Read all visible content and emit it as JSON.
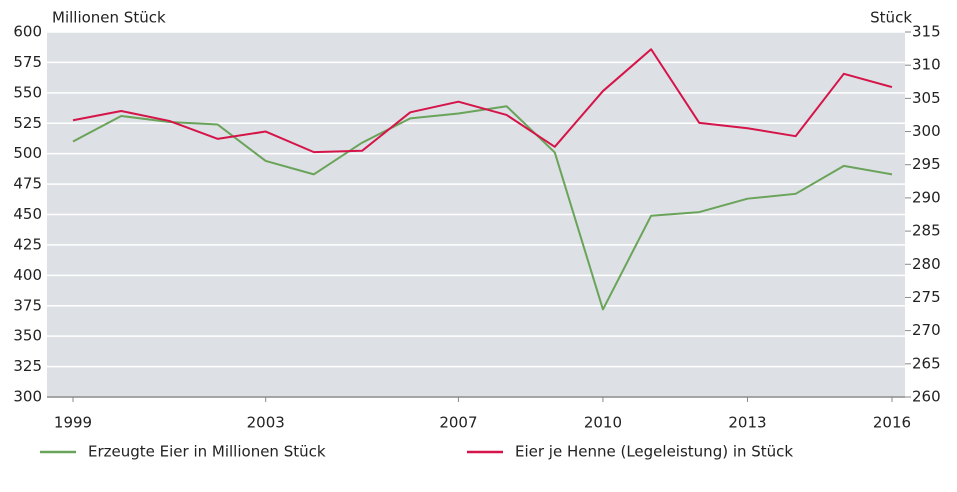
{
  "chart_data": {
    "type": "line",
    "y_label": "Millionen Stück",
    "y2_label": "Stück",
    "x": [
      1999,
      2000,
      2001,
      2002,
      2003,
      2004,
      2005,
      2006,
      2007,
      2008,
      2009,
      2010,
      2011,
      2012,
      2013,
      2014,
      2015,
      2016
    ],
    "xlim": [
      1998.46,
      2016.27
    ],
    "xticks": [
      1999,
      2003,
      2007,
      2010,
      2013,
      2016
    ],
    "ylim": [
      300,
      600
    ],
    "yticks": [
      300,
      325,
      350,
      375,
      400,
      425,
      450,
      475,
      500,
      525,
      550,
      575,
      600
    ],
    "y2lim": [
      260,
      315
    ],
    "y2ticks": [
      260,
      265,
      270,
      275,
      280,
      285,
      290,
      295,
      300,
      305,
      310,
      315
    ],
    "grid": true,
    "legend": "bottom",
    "series": [
      {
        "name": "Erzeugte Eier in Millionen Stück",
        "color": "#6aa35a",
        "values": [
          510,
          531,
          526,
          524,
          494,
          483,
          509,
          529,
          533,
          539,
          501,
          372,
          449,
          452,
          463,
          467,
          490,
          483
        ]
      },
      {
        "name": "Eier je Henne (Legeleistung) in Stück",
        "color": "#d5144a",
        "axis": "y2",
        "values": [
          301.7,
          303.1,
          301.6,
          298.9,
          300.0,
          296.9,
          297.1,
          302.9,
          304.5,
          302.5,
          297.7,
          306.1,
          312.4,
          301.3,
          300.5,
          299.3,
          308.7,
          306.7
        ]
      }
    ]
  }
}
